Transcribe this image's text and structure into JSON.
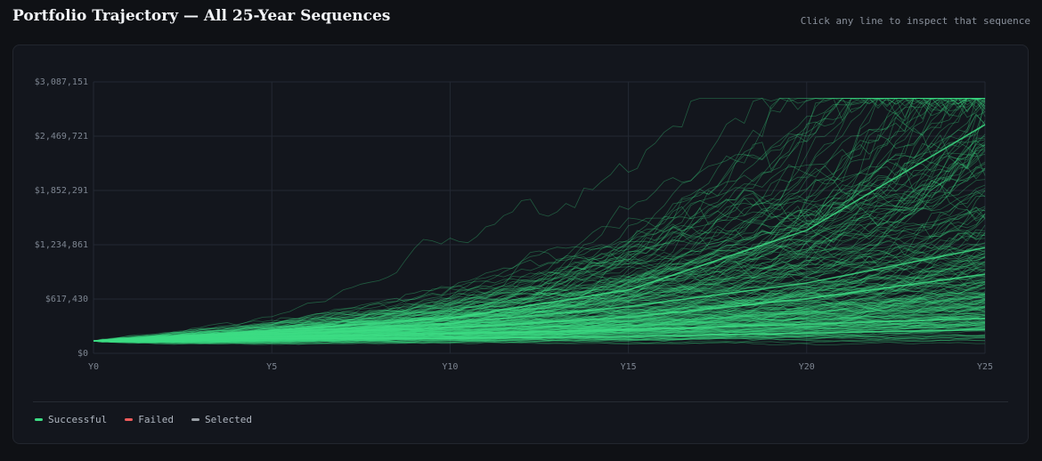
{
  "header": {
    "title": "Portfolio Trajectory — All 25-Year Sequences",
    "hint": "Click any line to inspect that sequence"
  },
  "colors": {
    "successful": "#3ddc84",
    "failed": "#ef5b5b",
    "selected": "#9aa0a6"
  },
  "legend": [
    {
      "label": "Successful",
      "color": "#3ddc84"
    },
    {
      "label": "Failed",
      "color": "#ef5b5b"
    },
    {
      "label": "Selected",
      "color": "#9aa0a6"
    }
  ],
  "chart_data": {
    "type": "line",
    "title": "Portfolio Trajectory — All 25-Year Sequences",
    "xlabel": "",
    "ylabel": "",
    "x_ticks": [
      "Y0",
      "Y5",
      "Y10",
      "Y15",
      "Y20",
      "Y25"
    ],
    "xlim": [
      0,
      25
    ],
    "y_ticks": [
      "$0",
      "$617,430",
      "$1,234,861",
      "$1,852,291",
      "$2,469,721",
      "$3,087,151"
    ],
    "y_tick_values": [
      0,
      617430,
      1234861,
      1852291,
      2469721,
      3087151
    ],
    "ylim": [
      0,
      3087151
    ],
    "grid": true,
    "legend_placement": "bottom-left",
    "series_representative": [
      {
        "name": "Successful",
        "x": [
          0,
          5,
          10,
          15,
          20,
          25
        ],
        "values": [
          140000,
          240000,
          340000,
          530000,
          800000,
          1200000
        ]
      },
      {
        "name": "Successful",
        "x": [
          0,
          5,
          10,
          15,
          20,
          25
        ],
        "values": [
          140000,
          220000,
          290000,
          410000,
          620000,
          900000
        ]
      },
      {
        "name": "Successful",
        "x": [
          0,
          5,
          10,
          15,
          20,
          25
        ],
        "values": [
          140000,
          190000,
          220000,
          270000,
          330000,
          400000
        ]
      },
      {
        "name": "Successful",
        "x": [
          0,
          5,
          10,
          15,
          20,
          25
        ],
        "values": [
          140000,
          170000,
          170000,
          190000,
          230000,
          270000
        ]
      },
      {
        "name": "Successful",
        "x": [
          0,
          5,
          10,
          15,
          20,
          25
        ],
        "values": [
          140000,
          260000,
          400000,
          720000,
          1400000,
          2600000
        ]
      }
    ]
  }
}
